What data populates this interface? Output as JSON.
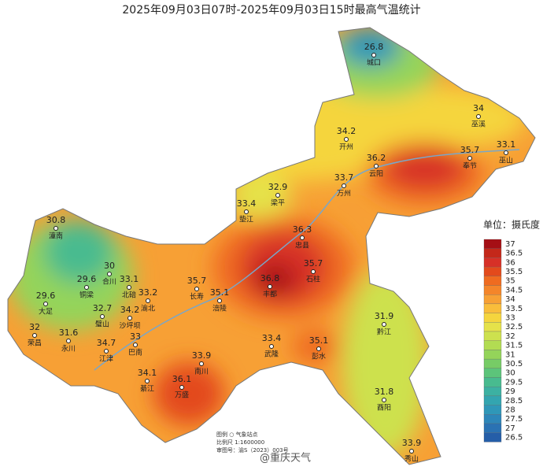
{
  "title": "2025年09月03日07时-2025年09月03日15时最高气温统计",
  "stations": [
    {
      "name": "城口",
      "value": 26.8
    },
    {
      "name": "巫溪",
      "value": 34
    },
    {
      "name": "巫山",
      "value": 33.1
    },
    {
      "name": "开州",
      "value": 34.2
    },
    {
      "name": "云阳",
      "value": 36.2
    },
    {
      "name": "奉节",
      "value": 35.7
    },
    {
      "name": "万州",
      "value": 33.7
    },
    {
      "name": "梁平",
      "value": 32.9
    },
    {
      "name": "垫江",
      "value": 33.4
    },
    {
      "name": "忠县",
      "value": 36.3
    },
    {
      "name": "石柱",
      "value": 35.7
    },
    {
      "name": "丰都",
      "value": 36.8
    },
    {
      "name": "长寿",
      "value": 35.7
    },
    {
      "name": "涪陵",
      "value": 35.1
    },
    {
      "name": "潼南",
      "value": 30.8
    },
    {
      "name": "合川",
      "value": 30
    },
    {
      "name": "北碚",
      "value": 33.1
    },
    {
      "name": "铜梁",
      "value": 29.6
    },
    {
      "name": "大足",
      "value": 29.6
    },
    {
      "name": "渝北",
      "value": 33.2
    },
    {
      "name": "璧山",
      "value": 32.7
    },
    {
      "name": "沙坪坝",
      "value": 34.2
    },
    {
      "name": "荣昌",
      "value": 32
    },
    {
      "name": "永川",
      "value": 31.6
    },
    {
      "name": "巴南",
      "value": 33
    },
    {
      "name": "江津",
      "value": 34.7
    },
    {
      "name": "南川",
      "value": 33.9
    },
    {
      "name": "武隆",
      "value": 33.4
    },
    {
      "name": "彭水",
      "value": 35.1
    },
    {
      "name": "黔江",
      "value": 31.9
    },
    {
      "name": "綦江",
      "value": 34.1
    },
    {
      "name": "万盛",
      "value": 36.1
    },
    {
      "name": "酉阳",
      "value": 31.8
    },
    {
      "name": "秀山",
      "value": 33.9
    }
  ],
  "legend": {
    "title": "单位：摄氏度",
    "levels": [
      {
        "value": 37,
        "color": "#a50f15"
      },
      {
        "value": 36.5,
        "color": "#c4281a"
      },
      {
        "value": 36,
        "color": "#d73027"
      },
      {
        "value": 35.5,
        "color": "#e34a1c"
      },
      {
        "value": 35,
        "color": "#ef6b20"
      },
      {
        "value": 34.5,
        "color": "#f4852a"
      },
      {
        "value": 34,
        "color": "#f7a035"
      },
      {
        "value": 33.5,
        "color": "#f9bd3b"
      },
      {
        "value": 33,
        "color": "#f5d53e"
      },
      {
        "value": 32.5,
        "color": "#e5e24a"
      },
      {
        "value": 32,
        "color": "#cde14e"
      },
      {
        "value": 31.5,
        "color": "#b2dc52"
      },
      {
        "value": 31,
        "color": "#94d45a"
      },
      {
        "value": 30.5,
        "color": "#77cc66"
      },
      {
        "value": 30,
        "color": "#5cc47a"
      },
      {
        "value": 29.5,
        "color": "#48bb8f"
      },
      {
        "value": 29,
        "color": "#3cb1a2"
      },
      {
        "value": 28.5,
        "color": "#33a5b0"
      },
      {
        "value": 28,
        "color": "#2f97b8"
      },
      {
        "value": 27.5,
        "color": "#2d86b9"
      },
      {
        "value": 27,
        "color": "#2a72b3"
      },
      {
        "value": 26.5,
        "color": "#255ea8"
      }
    ]
  },
  "map_notes": [
    "图例  ○ 气象站点",
    "比例尺  1:1600000",
    "审图号：渝S（2023）003号"
  ],
  "watermark": "@重庆天气"
}
